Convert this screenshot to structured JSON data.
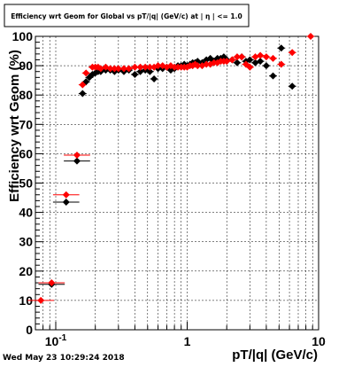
{
  "chart_data": {
    "type": "scatter",
    "title": "Efficiency wrt Geom for Global vs pT/|q| (GeV/c) at | η | <= 1.0",
    "xlabel": "pT/|q| (GeV/c)",
    "ylabel": "Efficiency wrt Geom (%)",
    "xscale": "log",
    "xlim": [
      0.07,
      10
    ],
    "ylim": [
      0,
      100
    ],
    "grid": true,
    "x_tick_labels": [
      "10^-1",
      "1",
      "10"
    ],
    "y_ticks": [
      0,
      10,
      20,
      30,
      40,
      50,
      60,
      70,
      80,
      90,
      100
    ],
    "series": [
      {
        "color": "#000000",
        "points": [
          [
            0.093,
            15.5
          ],
          [
            0.12,
            43.5
          ],
          [
            0.145,
            57.5
          ],
          [
            0.16,
            80.5
          ],
          [
            0.17,
            84.5
          ],
          [
            0.18,
            86
          ],
          [
            0.19,
            87
          ],
          [
            0.2,
            87.5
          ],
          [
            0.21,
            88
          ],
          [
            0.22,
            88
          ],
          [
            0.24,
            88.5
          ],
          [
            0.26,
            88.5
          ],
          [
            0.28,
            88
          ],
          [
            0.3,
            88.5
          ],
          [
            0.33,
            88
          ],
          [
            0.36,
            88.5
          ],
          [
            0.4,
            87
          ],
          [
            0.44,
            88
          ],
          [
            0.48,
            88.5
          ],
          [
            0.52,
            88
          ],
          [
            0.56,
            85.5
          ],
          [
            0.6,
            89
          ],
          [
            0.65,
            89
          ],
          [
            0.7,
            89.5
          ],
          [
            0.75,
            88.5
          ],
          [
            0.8,
            89
          ],
          [
            0.85,
            90
          ],
          [
            0.9,
            90
          ],
          [
            0.95,
            90.5
          ],
          [
            1.0,
            90
          ],
          [
            1.05,
            90.5
          ],
          [
            1.1,
            91
          ],
          [
            1.15,
            91
          ],
          [
            1.2,
            91.5
          ],
          [
            1.3,
            91
          ],
          [
            1.4,
            92
          ],
          [
            1.5,
            92.5
          ],
          [
            1.6,
            91.5
          ],
          [
            1.7,
            92.5
          ],
          [
            1.8,
            92.5
          ],
          [
            1.9,
            93
          ],
          [
            2.0,
            92
          ],
          [
            2.2,
            92
          ],
          [
            2.4,
            91
          ],
          [
            2.6,
            93
          ],
          [
            2.8,
            91.5
          ],
          [
            3.0,
            92
          ],
          [
            3.3,
            91
          ],
          [
            3.6,
            91.5
          ],
          [
            4.0,
            90
          ],
          [
            4.5,
            86.5
          ],
          [
            5.2,
            96
          ],
          [
            6.3,
            83
          ]
        ]
      },
      {
        "color": "#ff0000",
        "points": [
          [
            0.077,
            10
          ],
          [
            0.093,
            16
          ],
          [
            0.12,
            46
          ],
          [
            0.145,
            59.5
          ],
          [
            0.16,
            83.5
          ],
          [
            0.17,
            87.5
          ],
          [
            0.19,
            89.5
          ],
          [
            0.2,
            89.5
          ],
          [
            0.21,
            89.5
          ],
          [
            0.22,
            89
          ],
          [
            0.24,
            89.5
          ],
          [
            0.26,
            89
          ],
          [
            0.28,
            89
          ],
          [
            0.3,
            89
          ],
          [
            0.33,
            89
          ],
          [
            0.36,
            89
          ],
          [
            0.4,
            89.5
          ],
          [
            0.44,
            89.5
          ],
          [
            0.48,
            89.5
          ],
          [
            0.52,
            89.5
          ],
          [
            0.56,
            89.5
          ],
          [
            0.6,
            90
          ],
          [
            0.65,
            90
          ],
          [
            0.7,
            89.5
          ],
          [
            0.75,
            90
          ],
          [
            0.8,
            89.5
          ],
          [
            0.85,
            89.5
          ],
          [
            0.9,
            89.5
          ],
          [
            0.95,
            89.5
          ],
          [
            1.0,
            89.5
          ],
          [
            1.05,
            90
          ],
          [
            1.1,
            90
          ],
          [
            1.15,
            90.5
          ],
          [
            1.2,
            90
          ],
          [
            1.3,
            90
          ],
          [
            1.4,
            90.5
          ],
          [
            1.5,
            90.5
          ],
          [
            1.6,
            91
          ],
          [
            1.7,
            91
          ],
          [
            1.8,
            91.5
          ],
          [
            1.9,
            91.5
          ],
          [
            2.0,
            91.5
          ],
          [
            2.2,
            92
          ],
          [
            2.4,
            93
          ],
          [
            2.6,
            93
          ],
          [
            2.8,
            90.5
          ],
          [
            3.0,
            89.5
          ],
          [
            3.3,
            93
          ],
          [
            3.6,
            93.5
          ],
          [
            4.0,
            93
          ],
          [
            4.5,
            92.5
          ],
          [
            5.2,
            90.5
          ],
          [
            6.3,
            94.5
          ],
          [
            8.7,
            100
          ]
        ]
      }
    ]
  },
  "timestamp": "Wed May 23 10:29:24 2018"
}
